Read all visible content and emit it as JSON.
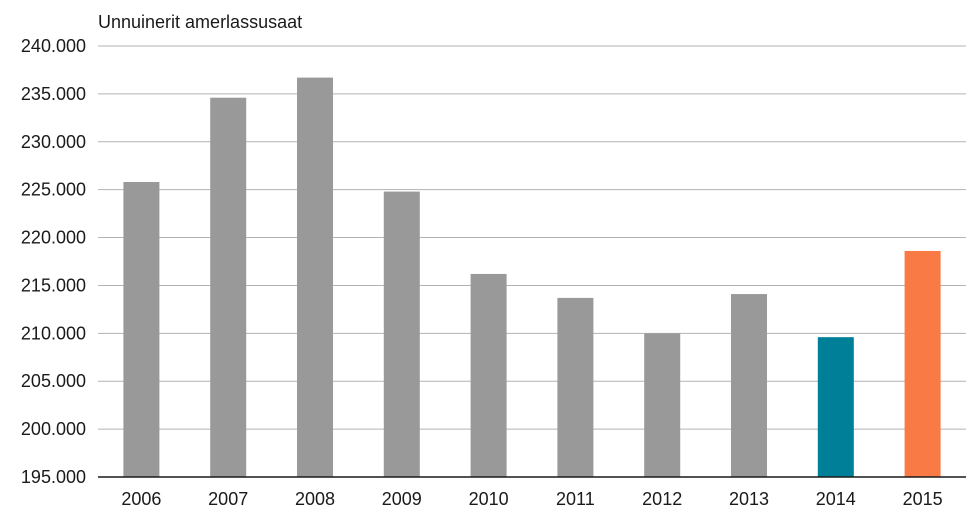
{
  "chart_data": {
    "type": "bar",
    "title": "",
    "xlabel": "",
    "ylabel": "Unnuinerit amerlassusaat",
    "ylim": [
      195000,
      240000
    ],
    "y_ticks": [
      195000,
      200000,
      205000,
      210000,
      215000,
      220000,
      225000,
      230000,
      235000,
      240000
    ],
    "y_tick_labels": [
      "195.000",
      "200.000",
      "205.000",
      "210.000",
      "215.000",
      "220.000",
      "225.000",
      "230.000",
      "235.000",
      "240.000"
    ],
    "grid": true,
    "categories": [
      "2006",
      "2007",
      "2008",
      "2009",
      "2010",
      "2011",
      "2012",
      "2013",
      "2014",
      "2015"
    ],
    "values": [
      225800,
      234600,
      236700,
      224800,
      216200,
      213700,
      210000,
      214100,
      209600,
      218600
    ],
    "bar_colors": [
      "#999999",
      "#999999",
      "#999999",
      "#999999",
      "#999999",
      "#999999",
      "#999999",
      "#999999",
      "#007f99",
      "#f97a45"
    ]
  }
}
